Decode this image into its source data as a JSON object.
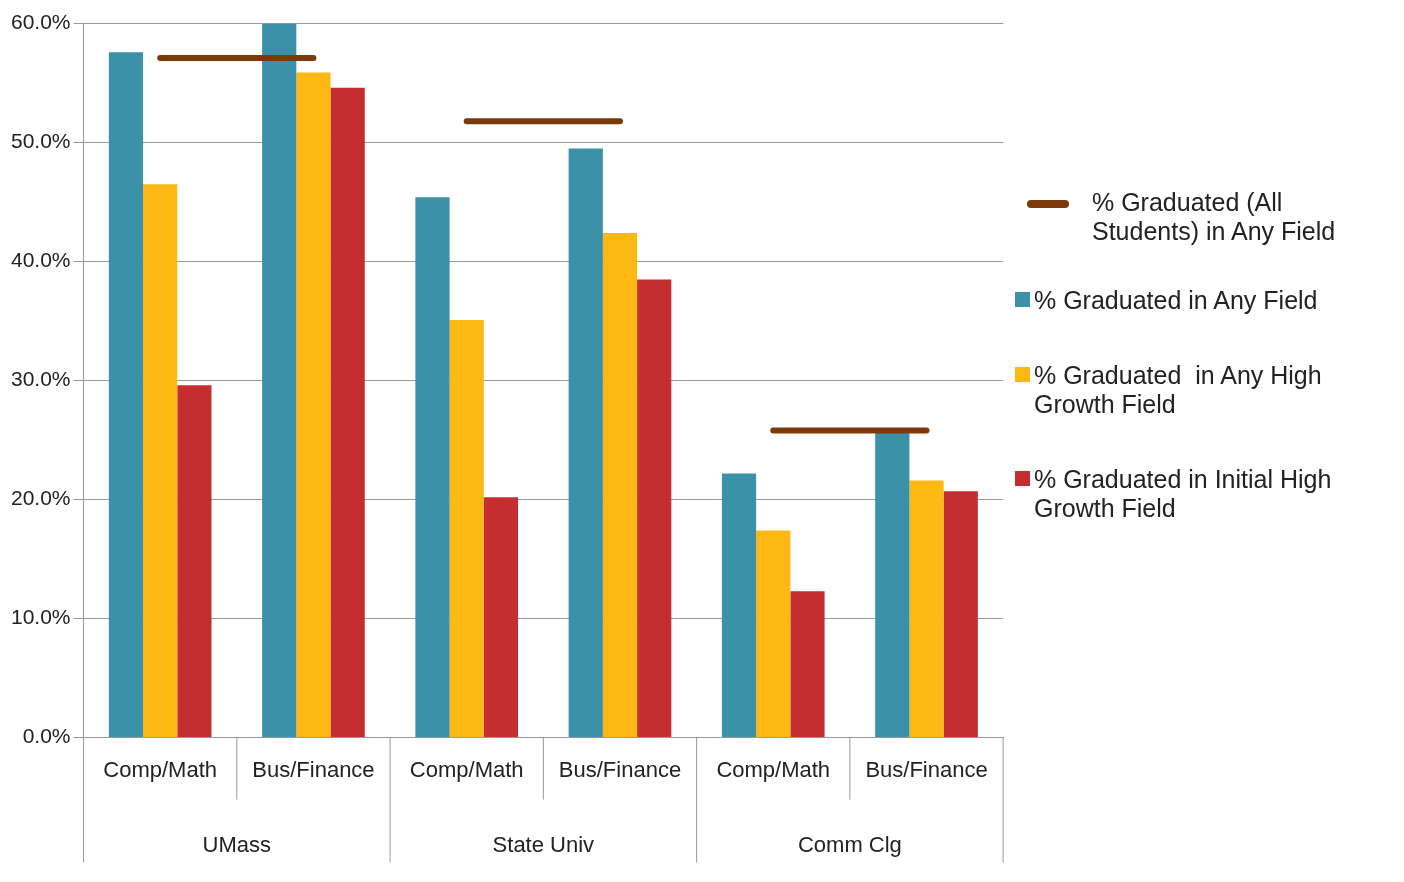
{
  "chart_data": {
    "type": "bar",
    "categories": [
      "Comp/Math",
      "Bus/Finance",
      "Comp/Math",
      "Bus/Finance",
      "Comp/Math",
      "Bus/Finance"
    ],
    "annotations": [
      "UMass",
      "State Univ",
      "Comm Clg"
    ],
    "series": [
      {
        "name": "% Graduated (All Students) in Any Field",
        "type": "line",
        "color": "#7a3a0a",
        "values": [
          57.1,
          57.1,
          51.8,
          51.8,
          25.8,
          25.8
        ]
      },
      {
        "name": "% Graduated in Any Field",
        "color": "#3a91a8",
        "values": [
          57.6,
          60.0,
          45.4,
          49.5,
          22.2,
          25.6
        ]
      },
      {
        "name": "% Graduated  in Any High Growth Field",
        "color": "#fdb813",
        "values": [
          46.5,
          55.9,
          35.1,
          42.4,
          17.4,
          21.6
        ]
      },
      {
        "name": "% Graduated in Initial High Growth Field",
        "color": "#c42e31",
        "values": [
          29.6,
          54.6,
          20.2,
          38.5,
          12.3,
          20.7
        ]
      }
    ],
    "ylim": [
      0,
      60
    ],
    "yticks": [
      {
        "value": 0,
        "label": "0.0%"
      },
      {
        "value": 10,
        "label": "10.0%"
      },
      {
        "value": 20,
        "label": "20.0%"
      },
      {
        "value": 30,
        "label": "30.0%"
      },
      {
        "value": 40,
        "label": "40.0%"
      },
      {
        "value": 50,
        "label": "50.0%"
      },
      {
        "value": 60,
        "label": "60.0%"
      }
    ],
    "grid": "y",
    "legend": "right"
  }
}
